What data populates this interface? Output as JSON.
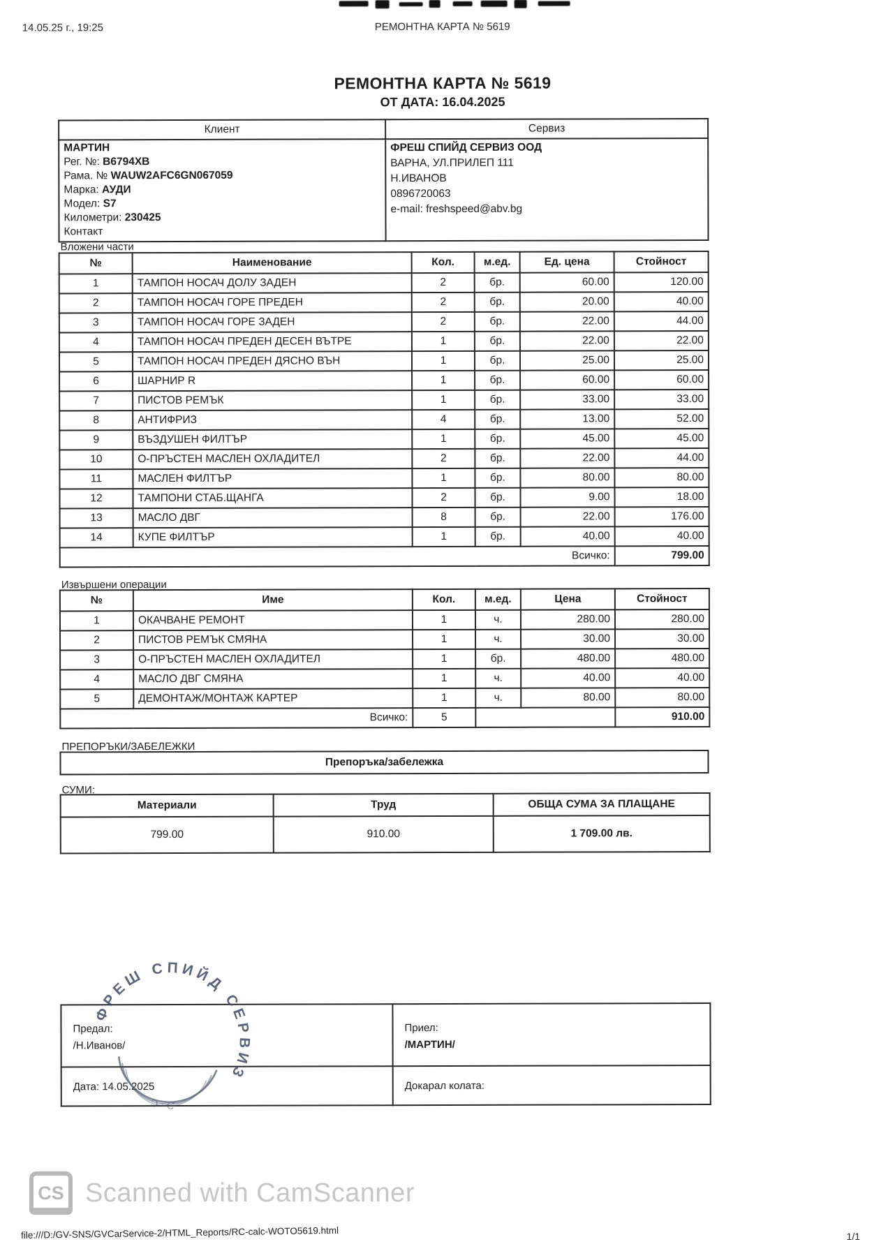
{
  "colors": {
    "stamp_ink": "#3f4963",
    "watermark_gray": "#c6c6c6",
    "ink": "#1d1d1d"
  },
  "print_header": {
    "datetime": "14.05.25 г., 19:25",
    "title": "РЕМОНТНА КАРТА № 5619"
  },
  "doc": {
    "title": "РЕМОНТНА КАРТА № 5619",
    "date_line": "ОТ ДАТА: 16.04.2025"
  },
  "client_service": {
    "client_header": "Клиент",
    "service_header": "Сервиз",
    "client_name": "МАРТИН",
    "client_fields": [
      {
        "label": "Рег. №:",
        "value": "B6794XB"
      },
      {
        "label": "Рама. №",
        "value": "WAUW2AFC6GN067059"
      },
      {
        "label": "Марка:",
        "value": "АУДИ"
      },
      {
        "label": "Модел:",
        "value": "S7"
      },
      {
        "label": "Километри:",
        "value": "230425"
      },
      {
        "label": "Контакт",
        "value": ""
      }
    ],
    "service_lines": [
      "ФРЕШ СПИЙД СЕРВИЗ ООД",
      "ВАРНА, УЛ.ПРИЛЕП 111",
      "Н.ИВАНОВ",
      "0896720063",
      "e-mail: freshspeed@abv.bg"
    ]
  },
  "parts": {
    "section_label": "Вложени части",
    "headers": [
      "№",
      "Наименование",
      "Кол.",
      "м.ед.",
      "Ед. цена",
      "Стойност"
    ],
    "rows": [
      [
        "1",
        "ТАМПОН НОСАЧ ДОЛУ ЗАДЕН",
        "2",
        "бр.",
        "60.00",
        "120.00"
      ],
      [
        "2",
        "ТАМПОН НОСАЧ ГОРЕ ПРЕДЕН",
        "2",
        "бр.",
        "20.00",
        "40.00"
      ],
      [
        "3",
        "ТАМПОН НОСАЧ ГОРЕ ЗАДЕН",
        "2",
        "бр.",
        "22.00",
        "44.00"
      ],
      [
        "4",
        "ТАМПОН НОСАЧ ПРЕДЕН ДЕСЕН ВЪТРЕ",
        "1",
        "бр.",
        "22.00",
        "22.00"
      ],
      [
        "5",
        "ТАМПОН НОСАЧ ПРЕДЕН ДЯСНО ВЪН",
        "1",
        "бр.",
        "25.00",
        "25.00"
      ],
      [
        "6",
        "ШАРНИР R",
        "1",
        "бр.",
        "60.00",
        "60.00"
      ],
      [
        "7",
        "ПИСТОВ РЕМЪК",
        "1",
        "бр.",
        "33.00",
        "33.00"
      ],
      [
        "8",
        "АНТИФРИЗ",
        "4",
        "бр.",
        "13.00",
        "52.00"
      ],
      [
        "9",
        "ВЪЗДУШЕН ФИЛТЪР",
        "1",
        "бр.",
        "45.00",
        "45.00"
      ],
      [
        "10",
        "О-ПРЪСТЕН МАСЛЕН ОХЛАДИТЕЛ",
        "2",
        "бр.",
        "22.00",
        "44.00"
      ],
      [
        "11",
        "МАСЛЕН ФИЛТЪР",
        "1",
        "бр.",
        "80.00",
        "80.00"
      ],
      [
        "12",
        "ТАМПОНИ СТАБ.ЩАНГА",
        "2",
        "бр.",
        "9.00",
        "18.00"
      ],
      [
        "13",
        "МАСЛО ДВГ",
        "8",
        "бр.",
        "22.00",
        "176.00"
      ],
      [
        "14",
        "КУПЕ ФИЛТЪР",
        "1",
        "бр.",
        "40.00",
        "40.00"
      ]
    ],
    "total_label": "Всичко:",
    "total_value": "799.00"
  },
  "operations": {
    "section_label": "Извършени операции",
    "headers": [
      "№",
      "Име",
      "Кол.",
      "м.ед.",
      "Цена",
      "Стойност"
    ],
    "rows": [
      [
        "1",
        "ОКАЧВАНЕ РЕМОНТ",
        "1",
        "ч.",
        "280.00",
        "280.00"
      ],
      [
        "2",
        "ПИСТОВ РЕМЪК СМЯНА",
        "1",
        "ч.",
        "30.00",
        "30.00"
      ],
      [
        "3",
        "О-ПРЪСТЕН МАСЛЕН ОХЛАДИТЕЛ",
        "1",
        "бр.",
        "480.00",
        "480.00"
      ],
      [
        "4",
        "МАСЛО ДВГ СМЯНА",
        "1",
        "ч.",
        "40.00",
        "40.00"
      ],
      [
        "5",
        "ДЕМОНТАЖ/МОНТАЖ КАРТЕР",
        "1",
        "ч.",
        "80.00",
        "80.00"
      ]
    ],
    "total_label": "Всичко:",
    "total_qty": "5",
    "total_value": "910.00"
  },
  "recommendations": {
    "section_label": "ПРЕПОРЪКИ/ЗАБЕЛЕЖКИ",
    "box_label": "Препоръка/забележка"
  },
  "sums": {
    "section_label": "СУМИ:",
    "headers": [
      "Материали",
      "Труд",
      "ОБЩА СУМА ЗА ПЛАЩАНЕ"
    ],
    "materials": "799.00",
    "labor": "910.00",
    "grand_total": "1 709.00 лв."
  },
  "signatures": {
    "handed_label": "Предал:",
    "handed_name": "/Н.Иванов/",
    "received_label": "Приел:",
    "received_name": "/МАРТИН/",
    "date_line": "Дата: 14.05.2025",
    "delivered_label": "Докарал колата:",
    "stamp_text": "ФРЕШ СПИЙД СЕРВИЗ"
  },
  "scan_footer": {
    "watermark_text": "Scanned with CamScanner",
    "logo": "CS"
  },
  "page_footer": {
    "url": "file:///D:/GV-SNS/GVCarService-2/HTML_Reports/RC-calc-WOTO5619.html",
    "page_indicator": "1/1"
  }
}
